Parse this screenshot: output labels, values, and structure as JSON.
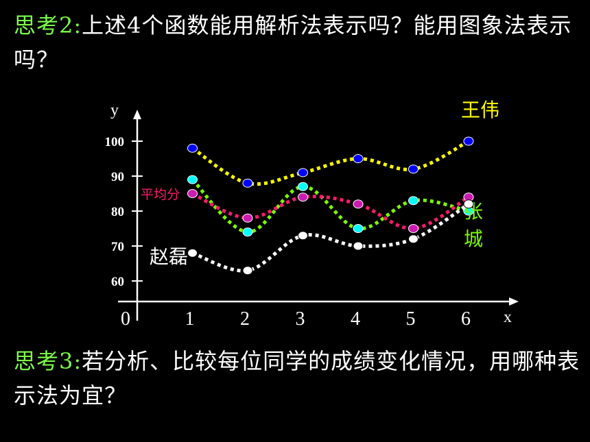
{
  "question2": {
    "lead": "思考2:",
    "text": "上述4个函数能用解析法表示吗？能用图象法表示吗？"
  },
  "question3": {
    "lead": "思考3:",
    "text": "若分析、比较每位同学的成绩变化情况，用哪种表示法为宜？"
  },
  "chart_data": {
    "type": "line",
    "xlabel": "x",
    "ylabel": "y",
    "x_ticks": [
      "0",
      "1",
      "2",
      "3",
      "4",
      "5",
      "6"
    ],
    "y_ticks": [
      "60",
      "70",
      "80",
      "90",
      "100"
    ],
    "categories": [
      1,
      2,
      3,
      4,
      5,
      6
    ],
    "ylim": [
      55,
      105
    ],
    "grid": false,
    "series": [
      {
        "name": "王伟",
        "color": "#ffff00",
        "marker": "#0000ff",
        "label_color": "#ffff00",
        "values": [
          98,
          88,
          91,
          95,
          92,
          100
        ]
      },
      {
        "name": "张城",
        "color": "#7cfc00",
        "marker": "#00ffff",
        "label_color": "#7cfc00",
        "values": [
          89,
          74,
          87,
          75,
          83,
          80
        ]
      },
      {
        "name": "平均分",
        "color": "#ff1a6e",
        "marker": "#cc1bb0",
        "label_color": "#ff1a6e",
        "values": [
          85,
          78,
          84,
          82,
          75,
          84
        ]
      },
      {
        "name": "赵磊",
        "color": "#ffffff",
        "marker": "#ffffff",
        "label_color": "#ffffff",
        "values": [
          68,
          63,
          73,
          70,
          72,
          82
        ]
      }
    ]
  }
}
